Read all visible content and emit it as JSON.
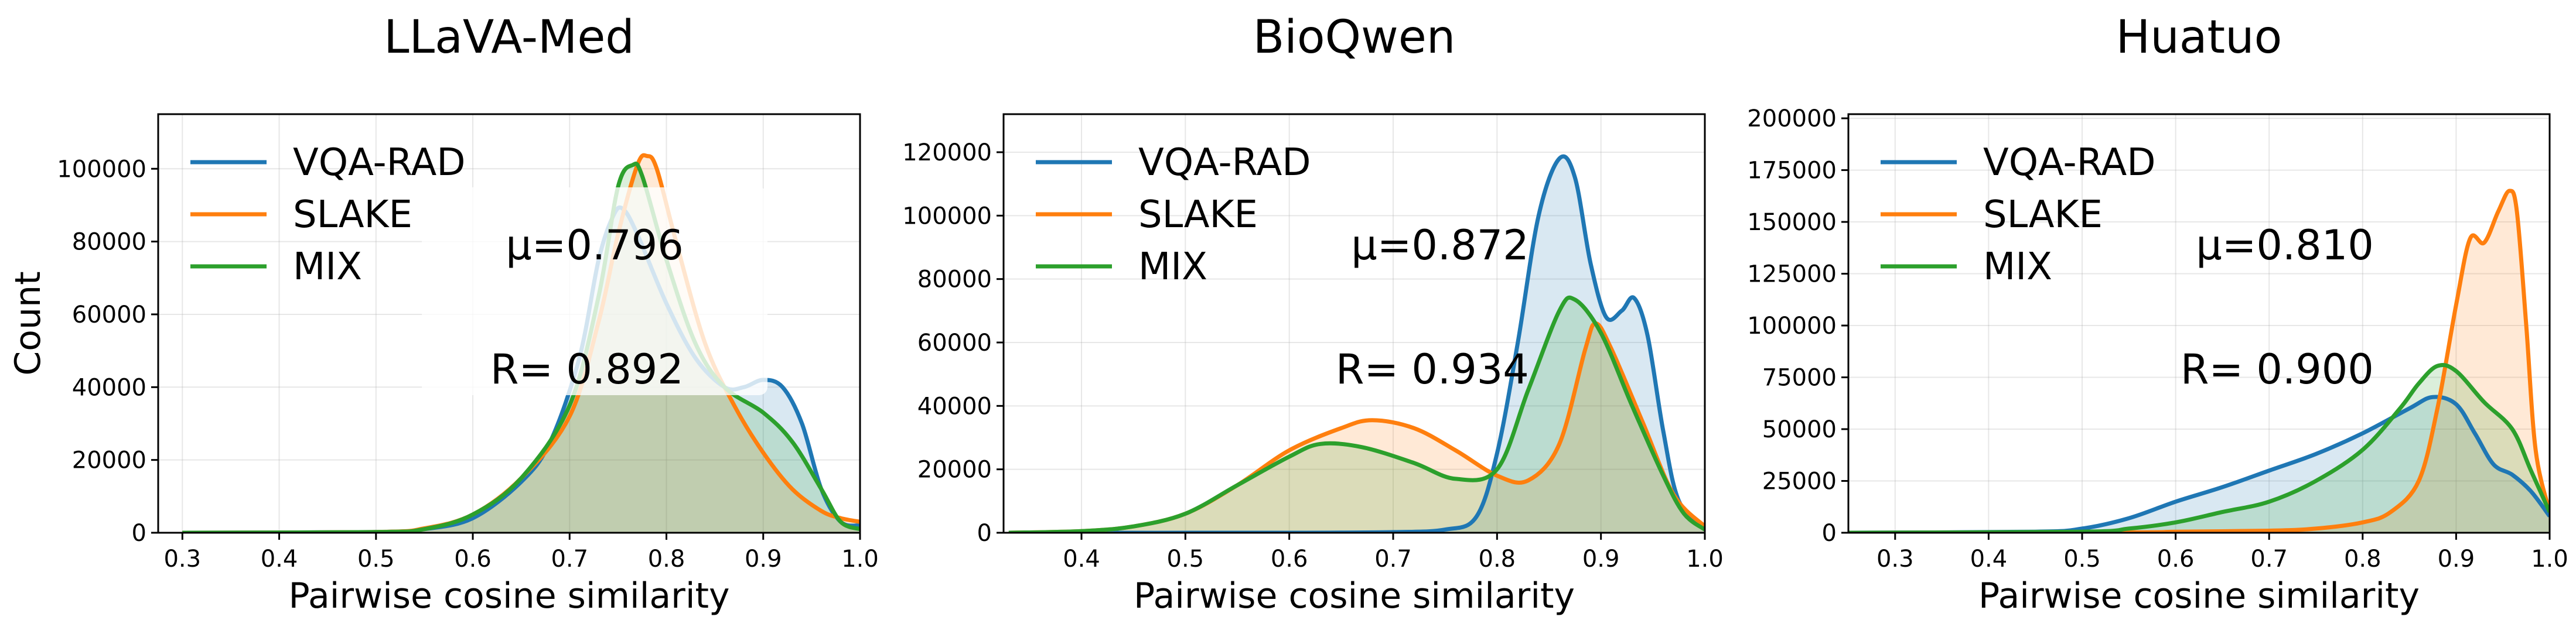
{
  "chart_data": [
    {
      "type": "area",
      "title": "LLaVA-Med",
      "xlabel": "Pairwise cosine similarity",
      "ylabel": "Count",
      "xlim": [
        0.275,
        1.0
      ],
      "ylim": [
        0,
        115000
      ],
      "xticks": [
        0.3,
        0.4,
        0.5,
        0.6,
        0.7,
        0.8,
        0.9,
        1.0
      ],
      "xtick_labels": [
        "0.3",
        "0.4",
        "0.5",
        "0.6",
        "0.7",
        "0.8",
        "0.9",
        "1.0"
      ],
      "yticks": [
        0,
        20000,
        40000,
        60000,
        80000,
        100000
      ],
      "ytick_labels": [
        "0",
        "20000",
        "40000",
        "60000",
        "80000",
        "100000"
      ],
      "grid": true,
      "legend": "upper-left",
      "annotations": [
        "μ=0.796",
        "R= 0.892"
      ],
      "annotation_box": true,
      "series": [
        {
          "name": "VQA-RAD",
          "color": "#1f77b4",
          "points": [
            [
              0.3,
              0
            ],
            [
              0.5,
              200
            ],
            [
              0.55,
              1000
            ],
            [
              0.6,
              4000
            ],
            [
              0.65,
              14000
            ],
            [
              0.68,
              25000
            ],
            [
              0.71,
              48000
            ],
            [
              0.73,
              75000
            ],
            [
              0.745,
              87000
            ],
            [
              0.755,
              89000
            ],
            [
              0.77,
              82000
            ],
            [
              0.8,
              63000
            ],
            [
              0.83,
              48000
            ],
            [
              0.86,
              40000
            ],
            [
              0.88,
              40000
            ],
            [
              0.9,
              42000
            ],
            [
              0.92,
              40000
            ],
            [
              0.94,
              30000
            ],
            [
              0.96,
              12000
            ],
            [
              0.98,
              3000
            ],
            [
              1.0,
              2000
            ]
          ]
        },
        {
          "name": "SLAKE",
          "color": "#ff7f0e",
          "points": [
            [
              0.3,
              0
            ],
            [
              0.5,
              200
            ],
            [
              0.55,
              1200
            ],
            [
              0.6,
              5000
            ],
            [
              0.65,
              15000
            ],
            [
              0.7,
              32000
            ],
            [
              0.73,
              58000
            ],
            [
              0.75,
              82000
            ],
            [
              0.77,
              101000
            ],
            [
              0.78,
              103500
            ],
            [
              0.79,
              100000
            ],
            [
              0.81,
              80000
            ],
            [
              0.84,
              52000
            ],
            [
              0.87,
              35000
            ],
            [
              0.9,
              22000
            ],
            [
              0.93,
              12000
            ],
            [
              0.96,
              6000
            ],
            [
              0.98,
              4000
            ],
            [
              1.0,
              3000
            ]
          ]
        },
        {
          "name": "MIX",
          "color": "#2ca02c",
          "points": [
            [
              0.3,
              0
            ],
            [
              0.5,
              200
            ],
            [
              0.55,
              1000
            ],
            [
              0.6,
              5000
            ],
            [
              0.65,
              15000
            ],
            [
              0.7,
              35000
            ],
            [
              0.73,
              65000
            ],
            [
              0.75,
              95000
            ],
            [
              0.765,
              101000
            ],
            [
              0.775,
              98000
            ],
            [
              0.8,
              75000
            ],
            [
              0.83,
              52000
            ],
            [
              0.86,
              40000
            ],
            [
              0.9,
              33000
            ],
            [
              0.93,
              25000
            ],
            [
              0.96,
              12000
            ],
            [
              0.98,
              3000
            ],
            [
              1.0,
              1000
            ]
          ]
        }
      ]
    },
    {
      "type": "area",
      "title": "BioQwen",
      "xlabel": "Pairwise cosine similarity",
      "ylabel": "",
      "xlim": [
        0.325,
        1.0
      ],
      "ylim": [
        0,
        132000
      ],
      "xticks": [
        0.4,
        0.5,
        0.6,
        0.7,
        0.8,
        0.9,
        1.0
      ],
      "xtick_labels": [
        "0.4",
        "0.5",
        "0.6",
        "0.7",
        "0.8",
        "0.9",
        "1.0"
      ],
      "yticks": [
        0,
        20000,
        40000,
        60000,
        80000,
        100000,
        120000
      ],
      "ytick_labels": [
        "0",
        "20000",
        "40000",
        "60000",
        "80000",
        "100000",
        "120000"
      ],
      "grid": true,
      "legend": "upper-left",
      "annotations": [
        "μ=0.872",
        "R= 0.934"
      ],
      "annotation_box": false,
      "series": [
        {
          "name": "VQA-RAD",
          "color": "#1f77b4",
          "points": [
            [
              0.33,
              0
            ],
            [
              0.6,
              0
            ],
            [
              0.7,
              200
            ],
            [
              0.75,
              1000
            ],
            [
              0.78,
              5000
            ],
            [
              0.8,
              25000
            ],
            [
              0.82,
              60000
            ],
            [
              0.84,
              100000
            ],
            [
              0.86,
              118000
            ],
            [
              0.875,
              112000
            ],
            [
              0.89,
              85000
            ],
            [
              0.905,
              68000
            ],
            [
              0.92,
              70000
            ],
            [
              0.932,
              74000
            ],
            [
              0.945,
              62000
            ],
            [
              0.96,
              32000
            ],
            [
              0.975,
              10000
            ],
            [
              1.0,
              1000
            ]
          ]
        },
        {
          "name": "SLAKE",
          "color": "#ff7f0e",
          "points": [
            [
              0.33,
              0
            ],
            [
              0.4,
              500
            ],
            [
              0.45,
              2000
            ],
            [
              0.5,
              6000
            ],
            [
              0.55,
              15000
            ],
            [
              0.6,
              26000
            ],
            [
              0.65,
              33000
            ],
            [
              0.68,
              35500
            ],
            [
              0.72,
              33000
            ],
            [
              0.76,
              26000
            ],
            [
              0.8,
              18000
            ],
            [
              0.83,
              16500
            ],
            [
              0.86,
              28000
            ],
            [
              0.885,
              58000
            ],
            [
              0.895,
              66000
            ],
            [
              0.91,
              58000
            ],
            [
              0.94,
              35000
            ],
            [
              0.97,
              12000
            ],
            [
              1.0,
              2000
            ]
          ]
        },
        {
          "name": "MIX",
          "color": "#2ca02c",
          "points": [
            [
              0.33,
              0
            ],
            [
              0.4,
              500
            ],
            [
              0.45,
              2000
            ],
            [
              0.5,
              6000
            ],
            [
              0.55,
              15000
            ],
            [
              0.6,
              24000
            ],
            [
              0.63,
              28000
            ],
            [
              0.67,
              27000
            ],
            [
              0.72,
              22000
            ],
            [
              0.76,
              17000
            ],
            [
              0.8,
              20000
            ],
            [
              0.83,
              45000
            ],
            [
              0.86,
              70000
            ],
            [
              0.875,
              73500
            ],
            [
              0.9,
              63000
            ],
            [
              0.93,
              40000
            ],
            [
              0.96,
              18000
            ],
            [
              0.98,
              6000
            ],
            [
              1.0,
              1000
            ]
          ]
        }
      ]
    },
    {
      "type": "area",
      "title": "Huatuo",
      "xlabel": "Pairwise cosine similarity",
      "ylabel": "",
      "xlim": [
        0.25,
        1.0
      ],
      "ylim": [
        0,
        202000
      ],
      "xticks": [
        0.3,
        0.4,
        0.5,
        0.6,
        0.7,
        0.8,
        0.9,
        1.0
      ],
      "xtick_labels": [
        "0.3",
        "0.4",
        "0.5",
        "0.6",
        "0.7",
        "0.8",
        "0.9",
        "1.0"
      ],
      "yticks": [
        0,
        25000,
        50000,
        75000,
        100000,
        125000,
        150000,
        175000,
        200000
      ],
      "ytick_labels": [
        "0",
        "25000",
        "50000",
        "75000",
        "100000",
        "125000",
        "150000",
        "175000",
        "200000"
      ],
      "grid": true,
      "legend": "upper-left",
      "annotations": [
        "μ=0.810",
        "R= 0.900"
      ],
      "annotation_box": false,
      "series": [
        {
          "name": "VQA-RAD",
          "color": "#1f77b4",
          "points": [
            [
              0.25,
              0
            ],
            [
              0.45,
              500
            ],
            [
              0.5,
              2000
            ],
            [
              0.55,
              7000
            ],
            [
              0.6,
              15000
            ],
            [
              0.65,
              22000
            ],
            [
              0.7,
              30000
            ],
            [
              0.75,
              38000
            ],
            [
              0.8,
              48000
            ],
            [
              0.85,
              60000
            ],
            [
              0.875,
              65500
            ],
            [
              0.9,
              62000
            ],
            [
              0.92,
              48000
            ],
            [
              0.94,
              33000
            ],
            [
              0.96,
              28000
            ],
            [
              0.98,
              20000
            ],
            [
              1.0,
              8000
            ]
          ]
        },
        {
          "name": "SLAKE",
          "color": "#ff7f0e",
          "points": [
            [
              0.25,
              0
            ],
            [
              0.55,
              200
            ],
            [
              0.6,
              500
            ],
            [
              0.7,
              1000
            ],
            [
              0.75,
              2000
            ],
            [
              0.8,
              5000
            ],
            [
              0.83,
              10000
            ],
            [
              0.86,
              25000
            ],
            [
              0.88,
              60000
            ],
            [
              0.9,
              110000
            ],
            [
              0.915,
              142000
            ],
            [
              0.93,
              140000
            ],
            [
              0.945,
              155000
            ],
            [
              0.957,
              165000
            ],
            [
              0.965,
              155000
            ],
            [
              0.975,
              100000
            ],
            [
              0.985,
              40000
            ],
            [
              1.0,
              10000
            ]
          ]
        },
        {
          "name": "MIX",
          "color": "#2ca02c",
          "points": [
            [
              0.25,
              0
            ],
            [
              0.5,
              500
            ],
            [
              0.55,
              2000
            ],
            [
              0.6,
              5000
            ],
            [
              0.65,
              10000
            ],
            [
              0.7,
              15000
            ],
            [
              0.75,
              25000
            ],
            [
              0.8,
              40000
            ],
            [
              0.84,
              60000
            ],
            [
              0.86,
              72000
            ],
            [
              0.88,
              80500
            ],
            [
              0.9,
              78000
            ],
            [
              0.93,
              63000
            ],
            [
              0.96,
              50000
            ],
            [
              0.98,
              30000
            ],
            [
              1.0,
              10000
            ]
          ]
        }
      ]
    }
  ]
}
